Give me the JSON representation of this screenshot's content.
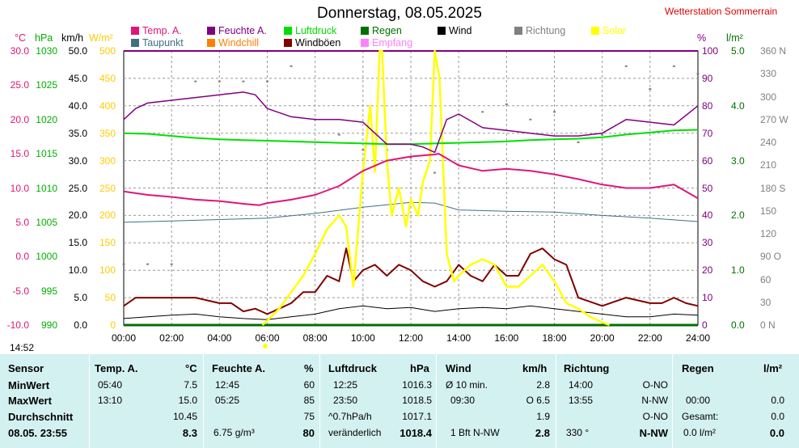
{
  "title": "Donnerstag, 08.05.2025",
  "station": "Wetterstation Sommerrain",
  "legend": [
    {
      "label": "Temp. A.",
      "color": "#e0157a"
    },
    {
      "label": "Feuchte A.",
      "color": "#800080"
    },
    {
      "label": "Luftdruck",
      "color": "#00e000"
    },
    {
      "label": "Regen",
      "color": "#007000"
    },
    {
      "label": "Wind",
      "color": "#000000"
    },
    {
      "label": "Richtung",
      "color": "#808080"
    },
    {
      "label": "Solar",
      "color": "#ffff00"
    },
    {
      "label": "Taupunkt",
      "color": "#407080"
    },
    {
      "label": "Windchill",
      "color": "#ff8000"
    },
    {
      "label": "Windböen",
      "color": "#800000"
    },
    {
      "label": "Empfang",
      "color": "#ff80ff"
    }
  ],
  "units": {
    "temp": "°C",
    "press": "hPa",
    "wind": "km/h",
    "solar": "W/m²",
    "hum": "%",
    "rain": "l/m²"
  },
  "axes": {
    "temp": [
      "30.0",
      "20.0",
      "10.0",
      "0.0",
      "-10.0"
    ],
    "temp_minor": [
      "25.0",
      "15.0",
      "5.0",
      "-5.0"
    ],
    "press": [
      "1030",
      "1025",
      "1020",
      "1015",
      "1010",
      "1005",
      "1000",
      "995",
      "990"
    ],
    "wind": [
      "50.0",
      "45.0",
      "40.0",
      "35.0",
      "30.0",
      "25.0",
      "20.0",
      "15.0",
      "10.0",
      "5.0",
      "0.0"
    ],
    "solar": [
      "500",
      "450",
      "400",
      "350",
      "300",
      "250",
      "200",
      "150",
      "100",
      "50",
      "0"
    ],
    "hum": [
      "100",
      "90",
      "80",
      "70",
      "60",
      "50",
      "40",
      "30",
      "20",
      "10",
      "0"
    ],
    "rain": [
      "5.0",
      "4.0",
      "3.0",
      "2.0",
      "1.0",
      "0.0"
    ],
    "dir": [
      "360 N",
      "330",
      "300",
      "270 W",
      "240",
      "210",
      "180 S",
      "150",
      "120",
      "90 O",
      "60",
      "30",
      "0 N"
    ]
  },
  "xticks": [
    "00:00",
    "02:00",
    "04:00",
    "06:00",
    "08:00",
    "10:00",
    "12:00",
    "14:00",
    "16:00",
    "18:00",
    "20:00",
    "22:00",
    "24:00"
  ],
  "time_now": "14:52",
  "chart_data": {
    "type": "line",
    "title": "Donnerstag, 08.05.2025",
    "x_range_hours": [
      0,
      24
    ],
    "series": [
      {
        "name": "Feuchte A.",
        "axis": "%",
        "ylim": [
          0,
          100
        ],
        "x": [
          0,
          0.5,
          1,
          2,
          3,
          4,
          5,
          5.5,
          6,
          7,
          8,
          9,
          10,
          11,
          12,
          12.5,
          13,
          13.5,
          14,
          15,
          16,
          17,
          18,
          19,
          20,
          21,
          22,
          23,
          24
        ],
        "values": [
          75,
          79,
          81,
          82,
          83,
          84,
          85,
          84,
          79,
          76,
          75,
          75,
          74,
          66,
          66,
          65,
          63,
          75,
          77,
          72,
          71,
          70,
          69,
          69,
          70,
          75,
          74,
          73,
          80
        ]
      },
      {
        "name": "Luftdruck",
        "axis": "hPa",
        "ylim": [
          990,
          1030
        ],
        "x": [
          0,
          1,
          2,
          3,
          4,
          5,
          6,
          7,
          8,
          9,
          10,
          11,
          12,
          13,
          14,
          15,
          16,
          17,
          18,
          19,
          20,
          21,
          22,
          23,
          24
        ],
        "values": [
          1018.0,
          1017.9,
          1017.6,
          1017.3,
          1017.1,
          1017.0,
          1016.9,
          1016.8,
          1016.7,
          1016.6,
          1016.5,
          1016.4,
          1016.4,
          1016.5,
          1016.6,
          1016.7,
          1016.8,
          1017.0,
          1017.1,
          1017.2,
          1017.4,
          1017.8,
          1018.1,
          1018.4,
          1018.5
        ]
      },
      {
        "name": "Temp. A.",
        "axis": "°C",
        "ylim": [
          -10,
          30
        ],
        "x": [
          0,
          1,
          2,
          3,
          4,
          5,
          5.67,
          6,
          7,
          8,
          9,
          10,
          11,
          12,
          13,
          13.17,
          14,
          15,
          16,
          17,
          18,
          19,
          20,
          21,
          22,
          23,
          24
        ],
        "values": [
          9.5,
          9.0,
          8.7,
          8.3,
          8.1,
          7.7,
          7.5,
          7.8,
          8.3,
          9.0,
          10.3,
          12.5,
          14.0,
          14.6,
          14.9,
          15.0,
          13.3,
          12.5,
          12.8,
          12.5,
          12.0,
          11.3,
          10.5,
          10.0,
          10.0,
          10.5,
          8.5
        ]
      },
      {
        "name": "Taupunkt",
        "axis": "°C",
        "ylim": [
          -10,
          30
        ],
        "x": [
          0,
          2,
          4,
          6,
          8,
          10,
          12,
          13,
          14,
          16,
          18,
          20,
          22,
          24
        ],
        "values": [
          5.0,
          5.2,
          5.4,
          5.6,
          6.3,
          7.2,
          7.9,
          7.8,
          6.8,
          6.6,
          6.5,
          6.0,
          5.6,
          5.1
        ]
      },
      {
        "name": "Solar",
        "axis": "W/m²",
        "ylim": [
          0,
          500
        ],
        "x": [
          5.8,
          6.5,
          7,
          7.5,
          8,
          8.5,
          9,
          9.3,
          9.6,
          10,
          10.3,
          10.5,
          10.7,
          10.8,
          11,
          11.2,
          11.5,
          11.8,
          12,
          12.3,
          12.5,
          12.8,
          13,
          13.2,
          13.5,
          13.8,
          14,
          14.5,
          15,
          15.5,
          16,
          16.5,
          17,
          17.5,
          18,
          18.5,
          19,
          19.5,
          20,
          20.3
        ],
        "values": [
          0,
          30,
          60,
          90,
          130,
          175,
          200,
          180,
          70,
          280,
          400,
          280,
          500,
          500,
          300,
          200,
          250,
          180,
          230,
          200,
          260,
          300,
          500,
          450,
          130,
          80,
          90,
          110,
          120,
          110,
          70,
          70,
          90,
          110,
          80,
          40,
          30,
          15,
          5,
          0
        ]
      },
      {
        "name": "Windböen",
        "axis": "km/h",
        "ylim": [
          0,
          50
        ],
        "x": [
          0,
          0.5,
          1,
          2,
          3,
          4,
          4.5,
          5,
          5.5,
          6,
          6.5,
          7,
          7.5,
          8,
          8.5,
          9,
          9.3,
          9.6,
          10,
          10.5,
          11,
          11.5,
          12,
          12.5,
          13,
          13.5,
          14,
          14.5,
          15,
          15.5,
          16,
          16.5,
          17,
          17.5,
          18,
          18.5,
          19,
          20,
          21,
          22,
          22.5,
          23,
          23.5,
          24
        ],
        "values": [
          3.5,
          5,
          5,
          5,
          5,
          4,
          4,
          2.5,
          3,
          2,
          3,
          4,
          6,
          6,
          9,
          8,
          14,
          8,
          10,
          11,
          9,
          11,
          10,
          8,
          7,
          8,
          11,
          9,
          8,
          11,
          9,
          9,
          13,
          14,
          12,
          11,
          5,
          3.5,
          5,
          4,
          4,
          5,
          4,
          3.5
        ]
      },
      {
        "name": "Wind",
        "axis": "km/h",
        "ylim": [
          0,
          50
        ],
        "x": [
          0,
          1,
          2,
          3,
          4,
          5,
          6,
          7,
          8,
          9,
          10,
          11,
          12,
          13,
          14,
          15,
          16,
          17,
          18,
          19,
          20,
          21,
          22,
          23,
          24
        ],
        "values": [
          1.2,
          1.5,
          1.8,
          2,
          1.5,
          1.2,
          1,
          1.5,
          2,
          3,
          3.5,
          3,
          3.2,
          2.5,
          3,
          3.2,
          3,
          3.5,
          3,
          2.5,
          2,
          1.5,
          1.5,
          2,
          1.8
        ]
      },
      {
        "name": "Richtung",
        "axis": "°",
        "ylim": [
          0,
          360
        ],
        "x": [
          0,
          1,
          2,
          3,
          4,
          5,
          6,
          7,
          8,
          9,
          10,
          11,
          12,
          13,
          14,
          15,
          16,
          17,
          18,
          19,
          20,
          21,
          22,
          23,
          24
        ],
        "values": [
          80,
          80,
          80,
          320,
          320,
          320,
          320,
          340,
          270,
          250,
          230,
          230,
          220,
          200,
          210,
          280,
          290,
          270,
          280,
          240,
          250,
          340,
          310,
          340,
          330
        ]
      }
    ]
  },
  "table": {
    "sensor": {
      "header": "Sensor",
      "rows": [
        "MinWert",
        "MaxWert",
        "Durchschnitt"
      ],
      "current": "08.05. 23:55"
    },
    "temp": {
      "header": "Temp. A.",
      "unit": "°C",
      "min_time": "05:40",
      "min": "7.5",
      "max_time": "13:10",
      "max": "15.0",
      "avg": "10.45",
      "current": "8.3"
    },
    "hum": {
      "header": "Feuchte A.",
      "unit": "%",
      "min_time": "12:45",
      "min": "60",
      "max_time": "05:25",
      "max": "85",
      "avg": "75",
      "abs": "6.75 g/m³",
      "current": "80"
    },
    "press": {
      "header": "Luftdruck",
      "unit": "hPa",
      "min_time": "12:25",
      "min": "1016.3",
      "max_time": "23:50",
      "max": "1018.5",
      "trend": "^0.7hPa/h",
      "avg": "1017.1",
      "tendency": "veränderlich",
      "current": "1018.4"
    },
    "wind": {
      "header": "Wind",
      "unit": "km/h",
      "min_label": "Ø 10 min.",
      "min": "2.8",
      "max_time": "09:30",
      "max": "O 6.5",
      "avg": "1.9",
      "bft": "1 Bft N-NW",
      "current": "2.8"
    },
    "dir": {
      "header": "Richtung",
      "min_time": "14:00",
      "min": "O-NO",
      "max_time": "13:55",
      "max": "N-NW",
      "avg": "O-NO",
      "deg": "330 °",
      "current": "N-NW"
    },
    "rain": {
      "header": "Regen",
      "unit": "l/m²",
      "max_time": "00:00",
      "max": "0.0",
      "total_label": "Gesamt:",
      "total": "0.0",
      "rate": "0.0 l/m²",
      "current": "0.0"
    }
  }
}
